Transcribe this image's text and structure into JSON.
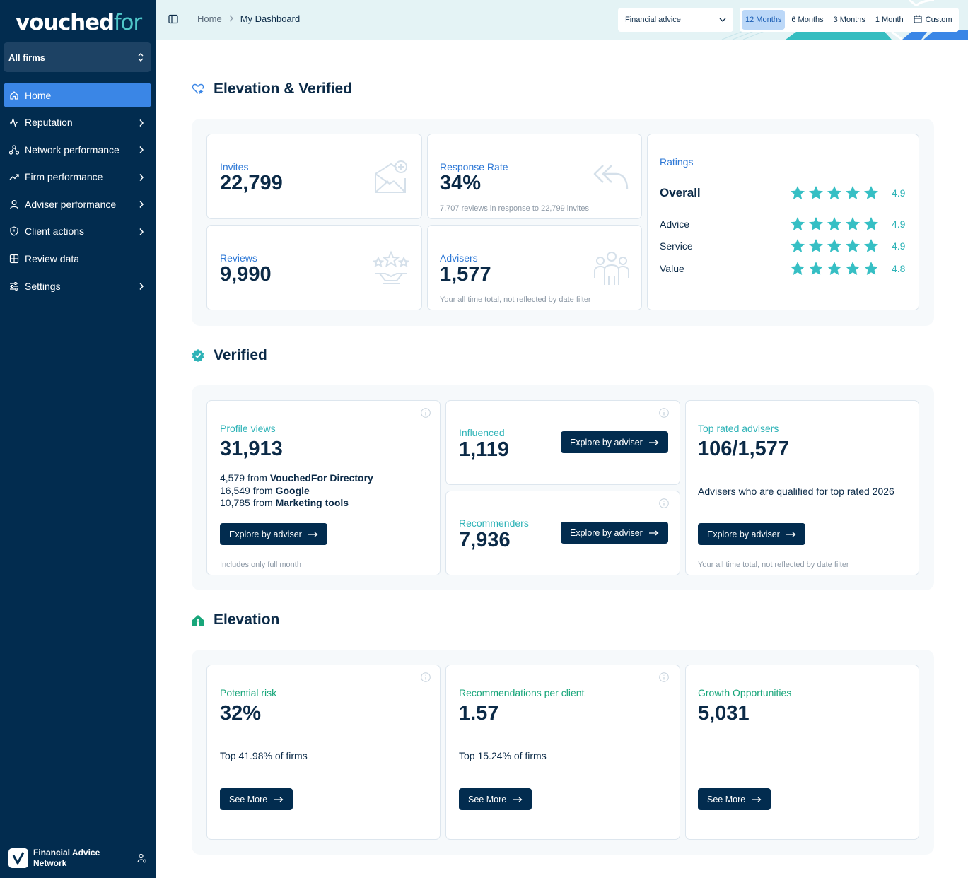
{
  "brand": {
    "logo_a": "vouched",
    "logo_b": "for"
  },
  "sidebar": {
    "firm_selector": "All firms",
    "items": [
      {
        "label": "Home",
        "icon": "home-icon",
        "active": true,
        "submenu": false
      },
      {
        "label": "Reputation",
        "icon": "activity-icon",
        "active": false,
        "submenu": true
      },
      {
        "label": "Network performance",
        "icon": "network-icon",
        "active": false,
        "submenu": true
      },
      {
        "label": "Firm performance",
        "icon": "trending-up-icon",
        "active": false,
        "submenu": true
      },
      {
        "label": "Adviser performance",
        "icon": "user-icon",
        "active": false,
        "submenu": true
      },
      {
        "label": "Client actions",
        "icon": "shield-icon",
        "active": false,
        "submenu": true
      },
      {
        "label": "Review data",
        "icon": "grid-icon",
        "active": false,
        "submenu": false
      },
      {
        "label": "Settings",
        "icon": "sliders-icon",
        "active": false,
        "submenu": true
      }
    ],
    "footer_name": "Financial Advice Network"
  },
  "topbar": {
    "breadcrumb": [
      "Home",
      "My Dashboard"
    ],
    "category": "Financial advice",
    "periods": [
      "12 Months",
      "6 Months",
      "3 Months",
      "1 Month",
      "Custom"
    ],
    "active_period": "12 Months"
  },
  "sections": {
    "elevation_verified": "Elevation & Verified",
    "verified": "Verified",
    "elevation": "Elevation"
  },
  "ev": {
    "invites": {
      "label": "Invites",
      "value": "22,799"
    },
    "response": {
      "label": "Response Rate",
      "value": "34%",
      "note": "7,707 reviews in response to 22,799 invites"
    },
    "reviews": {
      "label": "Reviews",
      "value": "9,990"
    },
    "advisers": {
      "label": "Advisers",
      "value": "1,577",
      "note": "Your all time total, not reflected by date filter"
    },
    "ratings": {
      "title": "Ratings",
      "rows": [
        {
          "label": "Overall",
          "score": "4.9",
          "stars": 5
        },
        {
          "label": "Advice",
          "score": "4.9",
          "stars": 5
        },
        {
          "label": "Service",
          "score": "4.9",
          "stars": 5
        },
        {
          "label": "Value",
          "score": "4.8",
          "stars": 5
        }
      ]
    }
  },
  "verified": {
    "profile_views": {
      "label": "Profile views",
      "value": "31,913",
      "sources": [
        {
          "count": "4,579",
          "from": "from",
          "source": "VouchedFor Directory"
        },
        {
          "count": "16,549",
          "from": "from",
          "source": "Google"
        },
        {
          "count": "10,785",
          "from": "from",
          "source": "Marketing tools"
        }
      ],
      "button": "Explore by adviser",
      "note": "Includes only full month"
    },
    "influenced": {
      "label": "Influenced",
      "value": "1,119",
      "button": "Explore by adviser"
    },
    "recommenders": {
      "label": "Recommenders",
      "value": "7,936",
      "button": "Explore by adviser"
    },
    "top_rated": {
      "label": "Top rated advisers",
      "value": "106/1,577",
      "desc": "Advisers who are qualified for top rated 2026",
      "button": "Explore by adviser",
      "note": "Your all time total, not reflected by date filter"
    }
  },
  "elevation": {
    "risk": {
      "label": "Potential risk",
      "value": "32%",
      "desc": "Top 41.98% of firms",
      "button": "See More"
    },
    "recs": {
      "label": "Recommendations per client",
      "value": "1.57",
      "desc": "Top 15.24% of firms",
      "button": "See More"
    },
    "growth": {
      "label": "Growth Opportunities",
      "value": "5,031",
      "button": "See More"
    }
  },
  "colors": {
    "sidebar": "#022c4f",
    "accent": "#3a86e6",
    "teal": "#2eb3b7",
    "green": "#18a67a",
    "star": "#36bfc4"
  }
}
